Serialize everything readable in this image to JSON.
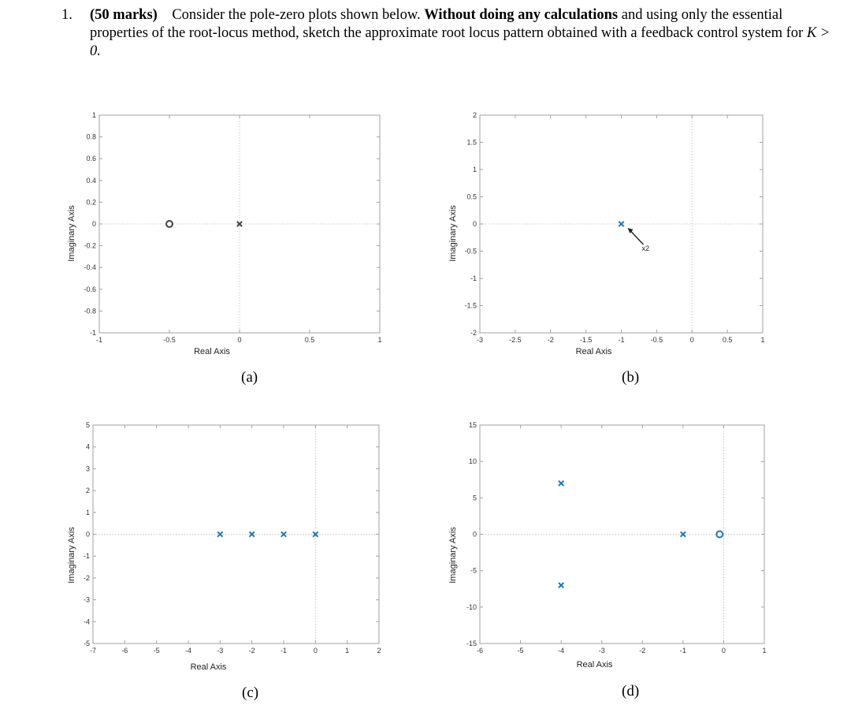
{
  "question": {
    "number": "1.",
    "marks": "(50 marks)",
    "text_a": "Consider the pole-zero plots shown below.",
    "emph": "Without doing any calculations",
    "text_b": "and using only the essential properties of the root-locus method, sketch the approximate root locus pattern obtained with a feedback control system for",
    "condition": "K > 0."
  },
  "colors": {
    "pole_a": "#404040",
    "zero_a": "#404040",
    "pole": "#1f77b4",
    "zero": "#1f77b4",
    "grid": "#c8c8c8",
    "axis": "#a0a0a0"
  },
  "chart_data": [
    {
      "type": "scatter",
      "caption": "(a)",
      "xlabel": "Real Axis",
      "ylabel": "Imaginary Axis",
      "xlim": [
        -1,
        1
      ],
      "ylim": [
        -1,
        1
      ],
      "xticks": [
        "-1",
        "-0.5",
        "0",
        "0.5",
        "1"
      ],
      "yticks": [
        "1",
        "0.8",
        "0.6",
        "0.4",
        "0.2",
        "0",
        "-0.2",
        "-0.4",
        "-0.6",
        "-0.8",
        "-1"
      ],
      "poles": [
        [
          0,
          0
        ]
      ],
      "zeros": [
        [
          -0.5,
          0
        ]
      ],
      "annotations": []
    },
    {
      "type": "scatter",
      "caption": "(b)",
      "xlabel": "Real Axis",
      "ylabel": "Imaginary Axis",
      "xlim": [
        -3,
        1
      ],
      "ylim": [
        -2,
        2
      ],
      "xticks": [
        "-3",
        "-2.5",
        "-2",
        "-1.5",
        "-1",
        "-0.5",
        "0",
        "0.5",
        "1"
      ],
      "yticks": [
        "2",
        "1.5",
        "1",
        "0.5",
        "0",
        "-0.5",
        "-1",
        "-1.5",
        "-2"
      ],
      "poles": [
        [
          -1,
          0
        ]
      ],
      "zeros": [],
      "annotations": [
        {
          "text": "x2"
        }
      ]
    },
    {
      "type": "scatter",
      "caption": "(c)",
      "xlabel": "Real Axis",
      "ylabel": "Imaginary Axis",
      "xlim": [
        -7,
        2
      ],
      "ylim": [
        -5,
        5
      ],
      "xticks": [
        "-7",
        "-6",
        "-5",
        "-4",
        "-3",
        "-2",
        "-1",
        "0",
        "1",
        "2"
      ],
      "yticks": [
        "5",
        "4",
        "3",
        "2",
        "1",
        "0",
        "-1",
        "-2",
        "-3",
        "-4",
        "-5"
      ],
      "poles": [
        [
          -3,
          0
        ],
        [
          -2,
          0
        ],
        [
          -1,
          0
        ],
        [
          0,
          0
        ]
      ],
      "zeros": [],
      "annotations": []
    },
    {
      "type": "scatter",
      "caption": "(d)",
      "xlabel": "Real Axis",
      "ylabel": "Imaginary Axis",
      "xlim": [
        -6,
        1
      ],
      "ylim": [
        -15,
        15
      ],
      "xticks": [
        "-6",
        "-5",
        "-4",
        "-3",
        "-2",
        "-1",
        "0",
        "1"
      ],
      "yticks": [
        "15",
        "10",
        "5",
        "0",
        "-5",
        "-10",
        "-15"
      ],
      "poles": [
        [
          -4,
          7
        ],
        [
          -4,
          -7
        ],
        [
          -1,
          0
        ]
      ],
      "zeros": [
        [
          -0.1,
          0
        ]
      ],
      "annotations": []
    }
  ]
}
